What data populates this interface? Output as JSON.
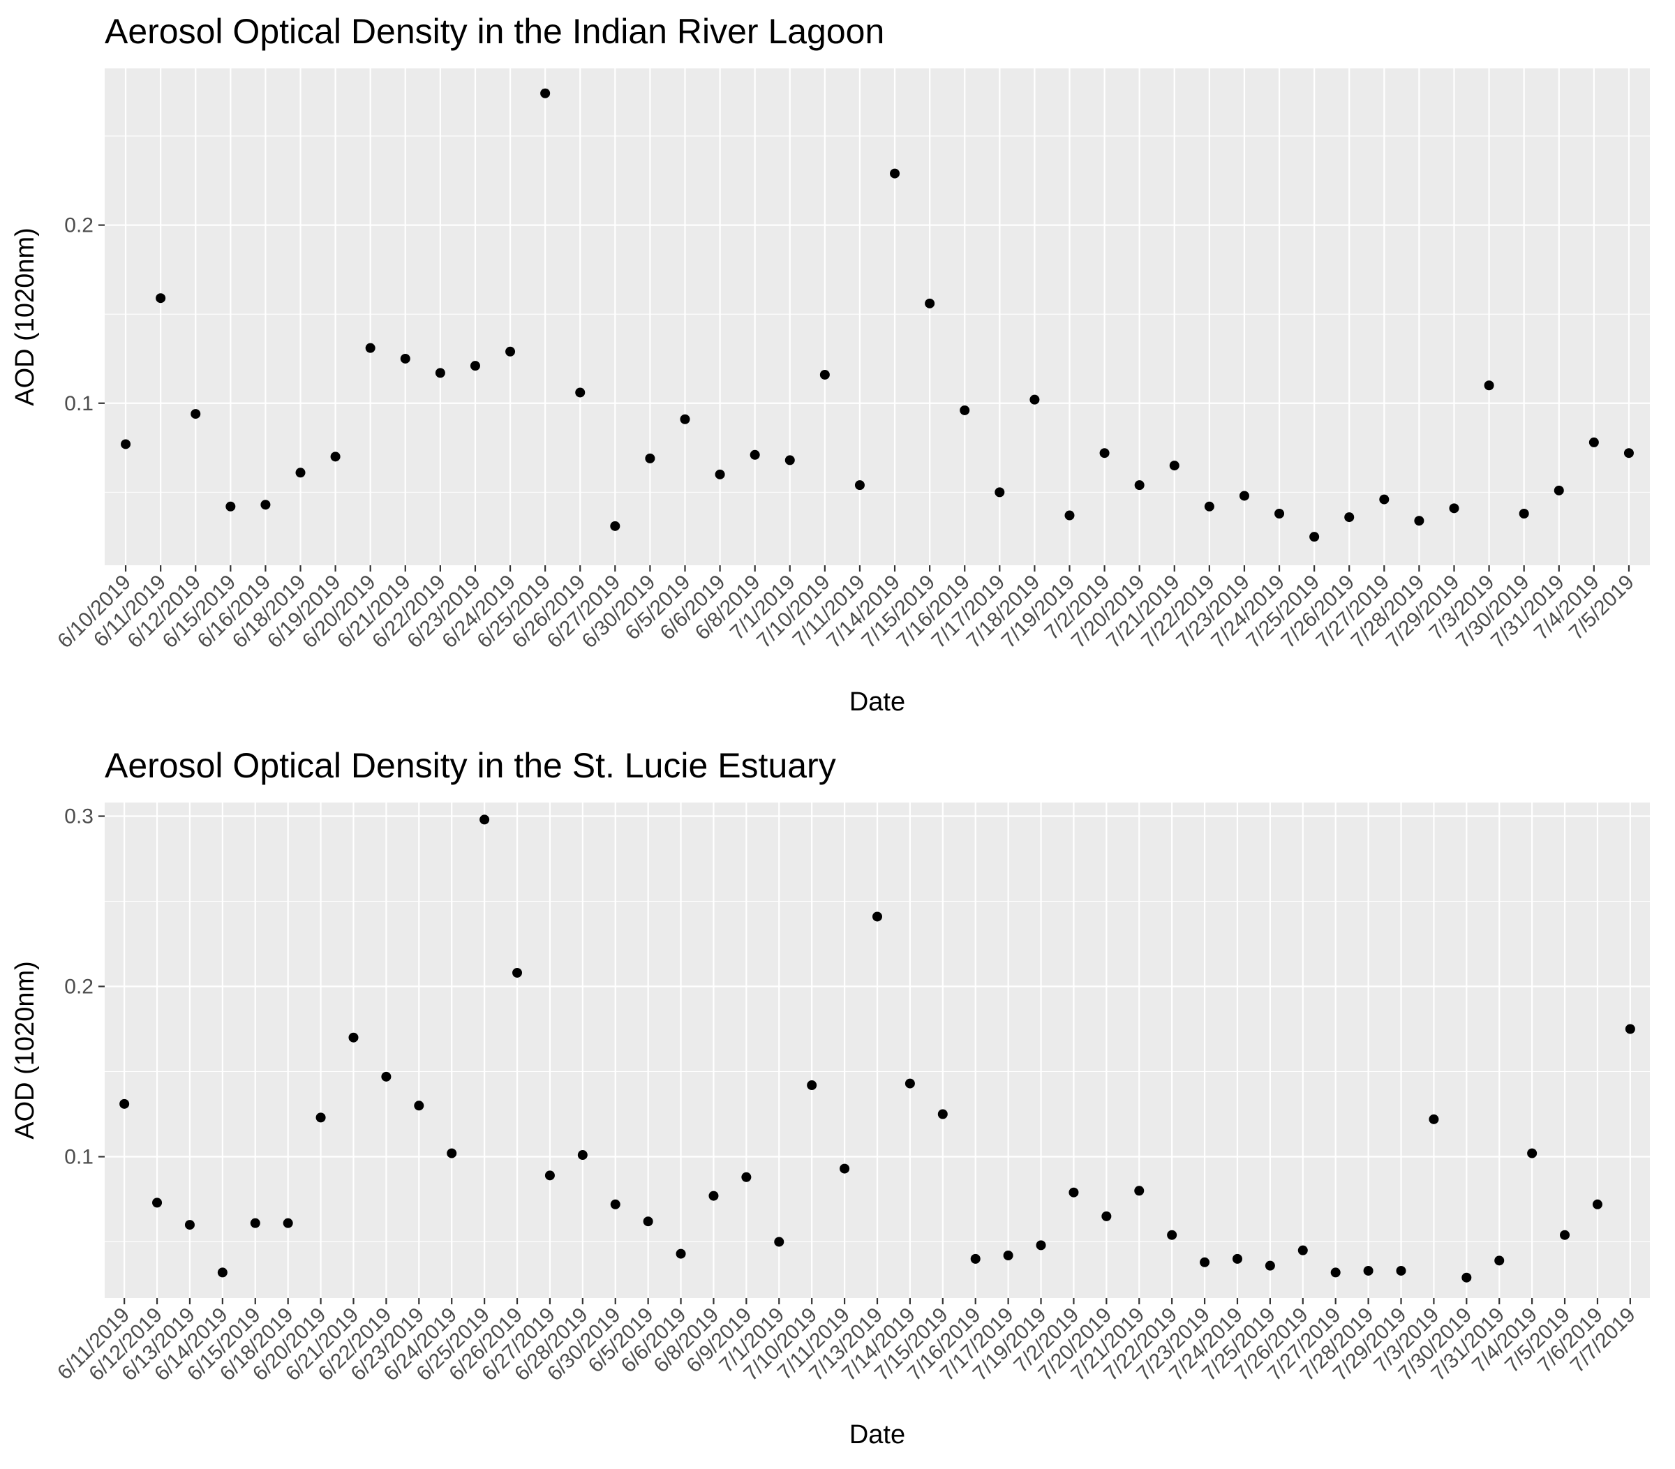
{
  "chart_data": [
    {
      "type": "scatter",
      "title": "Aerosol Optical Density in the Indian River Lagoon",
      "xlabel": "Date",
      "ylabel": "AOD (1020nm)",
      "x_axis": "categorical",
      "ylim": [
        0.009,
        0.288
      ],
      "y_ticks": [
        0.1,
        0.2
      ],
      "y_tick_labels": [
        "0.1",
        "0.2"
      ],
      "grid": true,
      "legend": "none",
      "point_color": "#000000",
      "panel_color": "#EBEBEB",
      "categories": [
        "6/10/2019",
        "6/11/2019",
        "6/12/2019",
        "6/15/2019",
        "6/16/2019",
        "6/18/2019",
        "6/19/2019",
        "6/20/2019",
        "6/21/2019",
        "6/22/2019",
        "6/23/2019",
        "6/24/2019",
        "6/25/2019",
        "6/26/2019",
        "6/27/2019",
        "6/30/2019",
        "6/5/2019",
        "6/6/2019",
        "6/8/2019",
        "7/1/2019",
        "7/10/2019",
        "7/11/2019",
        "7/14/2019",
        "7/15/2019",
        "7/16/2019",
        "7/17/2019",
        "7/18/2019",
        "7/19/2019",
        "7/2/2019",
        "7/20/2019",
        "7/21/2019",
        "7/22/2019",
        "7/23/2019",
        "7/24/2019",
        "7/25/2019",
        "7/26/2019",
        "7/27/2019",
        "7/28/2019",
        "7/29/2019",
        "7/3/2019",
        "7/30/2019",
        "7/31/2019",
        "7/4/2019",
        "7/5/2019"
      ],
      "values": [
        0.077,
        0.159,
        0.094,
        0.042,
        0.043,
        0.061,
        0.07,
        0.131,
        0.125,
        0.117,
        0.121,
        0.129,
        0.274,
        0.106,
        0.031,
        0.069,
        0.091,
        0.06,
        0.071,
        0.068,
        0.116,
        0.054,
        0.229,
        0.156,
        0.096,
        0.05,
        0.102,
        0.037,
        0.072,
        0.054,
        0.065,
        0.042,
        0.048,
        0.038,
        0.025,
        0.036,
        0.046,
        0.034,
        0.041,
        0.11,
        0.038,
        0.051,
        0.078,
        0.072
      ]
    },
    {
      "type": "scatter",
      "title": "Aerosol Optical Density in the St. Lucie Estuary",
      "xlabel": "Date",
      "ylabel": "AOD (1020nm)",
      "x_axis": "categorical",
      "ylim": [
        0.017,
        0.308
      ],
      "y_ticks": [
        0.1,
        0.2,
        0.3
      ],
      "y_tick_labels": [
        "0.1",
        "0.2",
        "0.3"
      ],
      "grid": true,
      "legend": "none",
      "point_color": "#000000",
      "panel_color": "#EBEBEB",
      "categories": [
        "6/11/2019",
        "6/12/2019",
        "6/13/2019",
        "6/14/2019",
        "6/15/2019",
        "6/18/2019",
        "6/20/2019",
        "6/21/2019",
        "6/22/2019",
        "6/23/2019",
        "6/24/2019",
        "6/25/2019",
        "6/26/2019",
        "6/27/2019",
        "6/28/2019",
        "6/30/2019",
        "6/5/2019",
        "6/6/2019",
        "6/8/2019",
        "6/9/2019",
        "7/1/2019",
        "7/10/2019",
        "7/11/2019",
        "7/13/2019",
        "7/14/2019",
        "7/15/2019",
        "7/16/2019",
        "7/17/2019",
        "7/19/2019",
        "7/2/2019",
        "7/20/2019",
        "7/21/2019",
        "7/22/2019",
        "7/23/2019",
        "7/24/2019",
        "7/25/2019",
        "7/26/2019",
        "7/27/2019",
        "7/28/2019",
        "7/29/2019",
        "7/3/2019",
        "7/30/2019",
        "7/31/2019",
        "7/4/2019",
        "7/5/2019",
        "7/6/2019",
        "7/7/2019"
      ],
      "values": [
        0.131,
        0.073,
        0.06,
        0.032,
        0.061,
        0.061,
        0.123,
        0.17,
        0.147,
        0.13,
        0.102,
        0.298,
        0.208,
        0.089,
        0.101,
        0.072,
        0.062,
        0.043,
        0.077,
        0.088,
        0.05,
        0.142,
        0.093,
        0.241,
        0.143,
        0.125,
        0.04,
        0.042,
        0.048,
        0.079,
        0.065,
        0.08,
        0.054,
        0.038,
        0.04,
        0.036,
        0.045,
        0.032,
        0.033,
        0.033,
        0.122,
        0.029,
        0.039,
        0.102,
        0.054,
        0.072,
        0.175
      ]
    }
  ]
}
